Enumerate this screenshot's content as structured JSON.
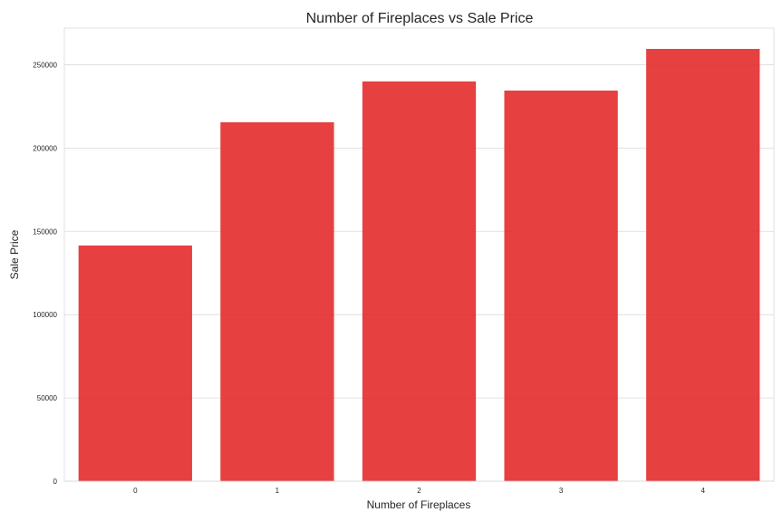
{
  "chart_data": {
    "type": "bar",
    "title": "Number of Fireplaces vs Sale Price",
    "xlabel": "Number of Fireplaces",
    "ylabel": "Sale Price",
    "categories": [
      "0",
      "1",
      "2",
      "3",
      "4"
    ],
    "values": [
      141500,
      215500,
      240000,
      234500,
      259500
    ],
    "ylim": [
      0,
      272000
    ],
    "yticks": [
      0,
      50000,
      100000,
      150000,
      200000,
      250000
    ],
    "ytick_labels": [
      "0",
      "50000",
      "100000",
      "150000",
      "200000",
      "250000"
    ],
    "bar_color": "#e32b2b",
    "grid": true
  }
}
